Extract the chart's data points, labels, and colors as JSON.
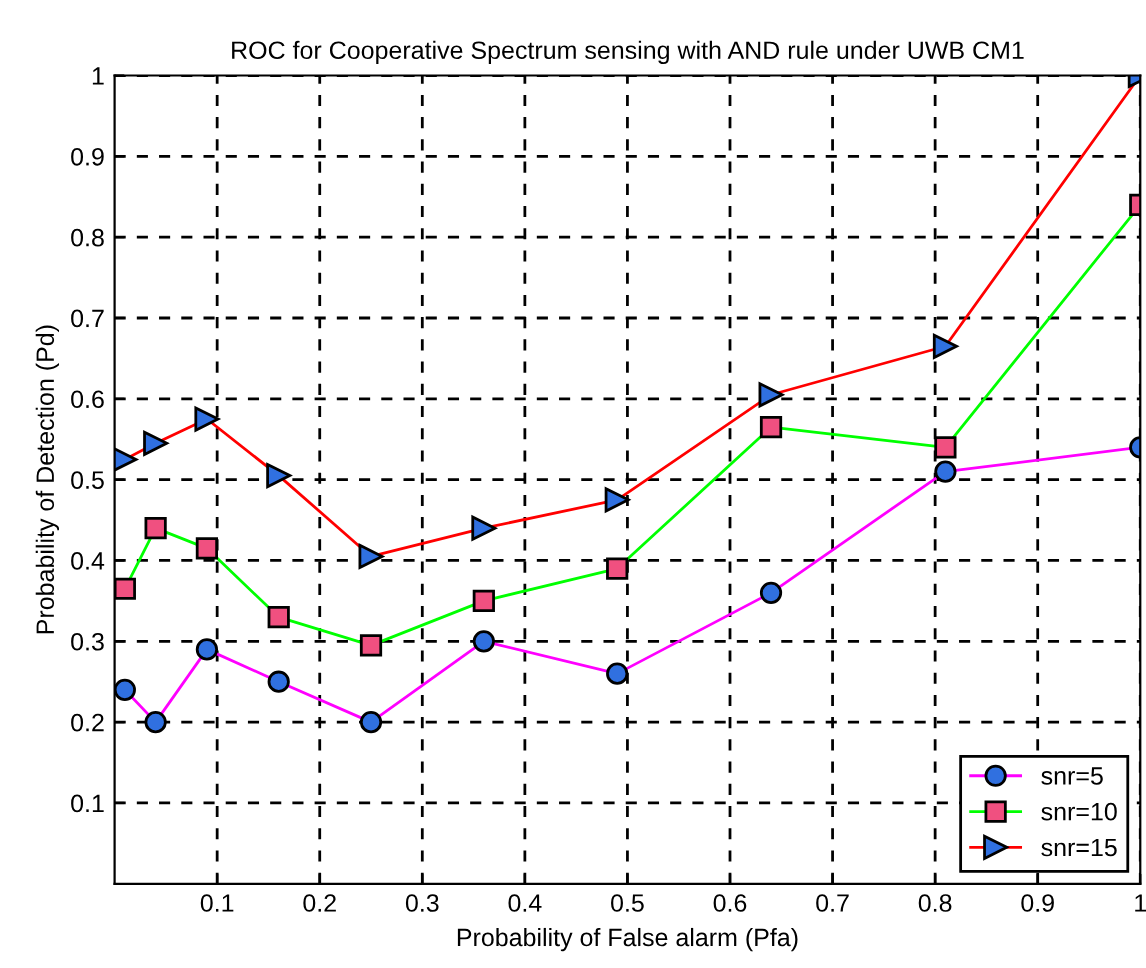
{
  "chart_data": {
    "type": "line",
    "title": "ROC for Cooperative Spectrum sensing with AND rule under UWB CM1",
    "xlabel": "Probability of False alarm (Pfa)",
    "ylabel": "Probability of Detection (Pd)",
    "x": [
      0.01,
      0.04,
      0.09,
      0.16,
      0.25,
      0.36,
      0.49,
      0.64,
      0.81,
      1.0
    ],
    "series": [
      {
        "name": "snr=5",
        "color": "#ff00ff",
        "marker": "circle",
        "values": [
          0.24,
          0.2,
          0.29,
          0.25,
          0.2,
          0.3,
          0.26,
          0.36,
          0.51,
          0.54
        ]
      },
      {
        "name": "snr=10",
        "color": "#00ff00",
        "marker": "square",
        "values": [
          0.365,
          0.44,
          0.415,
          0.33,
          0.295,
          0.35,
          0.39,
          0.565,
          0.54,
          0.84
        ]
      },
      {
        "name": "snr=15",
        "color": "#ff0000",
        "marker": "triangle",
        "values": [
          0.525,
          0.545,
          0.575,
          0.505,
          0.405,
          0.44,
          0.475,
          0.605,
          0.665,
          1.0
        ]
      }
    ],
    "xlim": [
      0,
      1
    ],
    "ylim": [
      0,
      1
    ],
    "xticks": [
      0.1,
      0.2,
      0.3,
      0.4,
      0.5,
      0.6,
      0.7,
      0.8,
      0.9,
      1
    ],
    "yticks": [
      0.1,
      0.2,
      0.3,
      0.4,
      0.5,
      0.6,
      0.7,
      0.8,
      0.9,
      1
    ],
    "grid": true,
    "legend": "bottom right",
    "line_style": "solid"
  }
}
